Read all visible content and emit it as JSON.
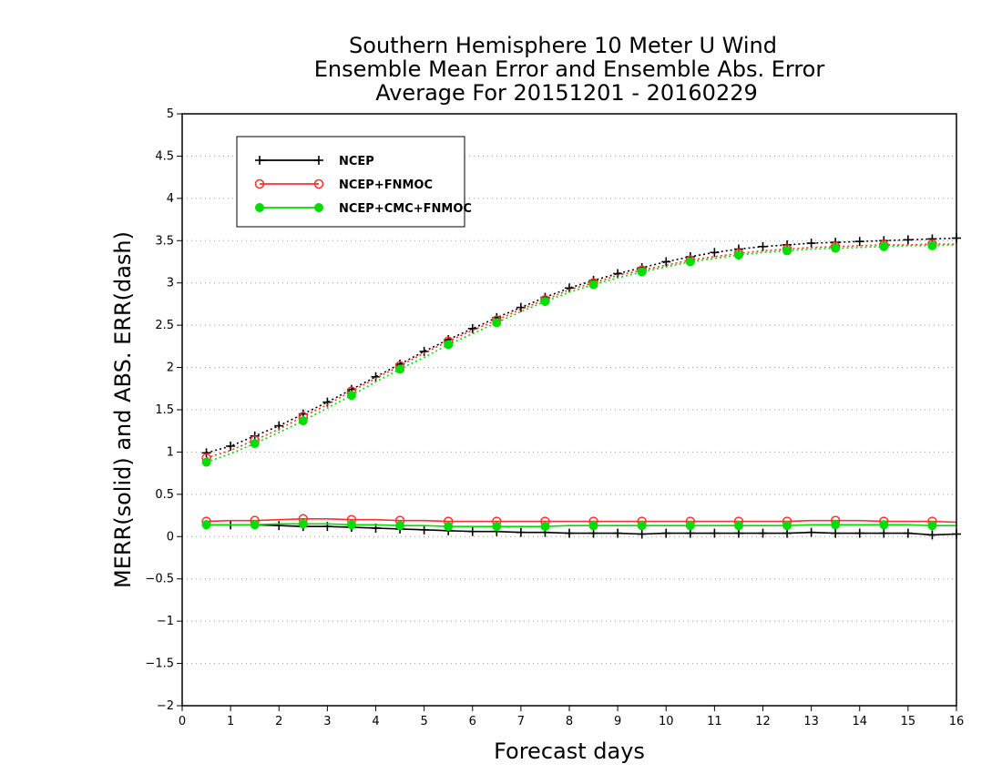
{
  "chart_data": {
    "type": "line",
    "title": [
      "Southern Hemisphere 10 Meter U Wind",
      "Ensemble Mean Error and Ensemble Abs. Error",
      "Average For 20151201 - 20160229"
    ],
    "xlabel": "Forecast days",
    "ylabel": "MERR(solid) and ABS. ERR(dash)",
    "xlim": [
      0,
      16
    ],
    "ylim": [
      -2,
      5
    ],
    "xticks": [
      0,
      1,
      2,
      3,
      4,
      5,
      6,
      7,
      8,
      9,
      10,
      11,
      12,
      13,
      14,
      15,
      16
    ],
    "xtick_labels": [
      "0",
      "1",
      "2",
      "3",
      "4",
      "5",
      "6",
      "7",
      "8",
      "9",
      "10",
      "11",
      "12",
      "13",
      "14",
      "15",
      "16"
    ],
    "yticks": [
      -2,
      -1.5,
      -1,
      -0.5,
      0,
      0.5,
      1,
      1.5,
      2,
      2.5,
      3,
      3.5,
      4,
      4.5,
      5
    ],
    "ytick_labels": [
      "−2",
      "−1.5",
      "−1",
      "−0.5",
      "0",
      "0.5",
      "1",
      "1.5",
      "2",
      "2.5",
      "3",
      "3.5",
      "4",
      "4.5",
      "5"
    ],
    "grid": "horizontal dotted",
    "legend_position": "top-left",
    "x": [
      0.5,
      1,
      1.5,
      2,
      2.5,
      3,
      3.5,
      4,
      4.5,
      5,
      5.5,
      6,
      6.5,
      7,
      7.5,
      8,
      8.5,
      9,
      9.5,
      10,
      10.5,
      11,
      11.5,
      12,
      12.5,
      13,
      13.5,
      14,
      14.5,
      15,
      15.5,
      16
    ],
    "series": [
      {
        "name": "NCEP",
        "color": "#000000",
        "marker": "plus",
        "merr": [
          0.14,
          0.14,
          0.14,
          0.13,
          0.12,
          0.12,
          0.11,
          0.1,
          0.09,
          0.08,
          0.07,
          0.06,
          0.06,
          0.05,
          0.05,
          0.04,
          0.04,
          0.04,
          0.03,
          0.04,
          0.04,
          0.04,
          0.04,
          0.04,
          0.04,
          0.05,
          0.04,
          0.04,
          0.04,
          0.04,
          0.02,
          0.03
        ],
        "abs_err": [
          0.99,
          1.07,
          1.19,
          1.31,
          1.45,
          1.59,
          1.74,
          1.89,
          2.04,
          2.19,
          2.33,
          2.46,
          2.59,
          2.71,
          2.83,
          2.94,
          3.03,
          3.11,
          3.18,
          3.25,
          3.31,
          3.36,
          3.4,
          3.43,
          3.45,
          3.47,
          3.48,
          3.49,
          3.5,
          3.51,
          3.52,
          3.53
        ]
      },
      {
        "name": "NCEP+FNMOC",
        "color": "#ff3030",
        "marker": "open-circle",
        "merr": [
          0.18,
          0.19,
          0.19,
          0.2,
          0.21,
          0.21,
          0.2,
          0.2,
          0.19,
          0.19,
          0.18,
          0.18,
          0.18,
          0.18,
          0.18,
          0.18,
          0.18,
          0.18,
          0.18,
          0.18,
          0.18,
          0.18,
          0.18,
          0.18,
          0.18,
          0.19,
          0.19,
          0.19,
          0.18,
          0.18,
          0.18,
          0.17
        ],
        "abs_err": [
          0.93,
          1.02,
          1.14,
          1.27,
          1.42,
          1.56,
          1.72,
          1.87,
          2.02,
          2.17,
          2.31,
          2.44,
          2.56,
          2.69,
          2.8,
          2.92,
          3.0,
          3.09,
          3.15,
          3.21,
          3.27,
          3.31,
          3.35,
          3.38,
          3.4,
          3.42,
          3.43,
          3.44,
          3.45,
          3.45,
          3.46,
          3.46
        ]
      },
      {
        "name": "NCEP+CMC+FNMOC",
        "color": "#00dd00",
        "marker": "filled-circle",
        "merr": [
          0.14,
          0.14,
          0.14,
          0.15,
          0.15,
          0.15,
          0.14,
          0.14,
          0.13,
          0.13,
          0.12,
          0.12,
          0.12,
          0.12,
          0.12,
          0.13,
          0.13,
          0.13,
          0.13,
          0.13,
          0.13,
          0.13,
          0.13,
          0.13,
          0.13,
          0.14,
          0.14,
          0.14,
          0.14,
          0.14,
          0.13,
          0.13
        ],
        "abs_err": [
          0.88,
          0.98,
          1.1,
          1.23,
          1.37,
          1.52,
          1.67,
          1.83,
          1.98,
          2.12,
          2.27,
          2.4,
          2.53,
          2.66,
          2.78,
          2.89,
          2.98,
          3.06,
          3.13,
          3.19,
          3.25,
          3.29,
          3.33,
          3.36,
          3.38,
          3.4,
          3.41,
          3.42,
          3.43,
          3.44,
          3.44,
          3.45
        ]
      }
    ]
  }
}
